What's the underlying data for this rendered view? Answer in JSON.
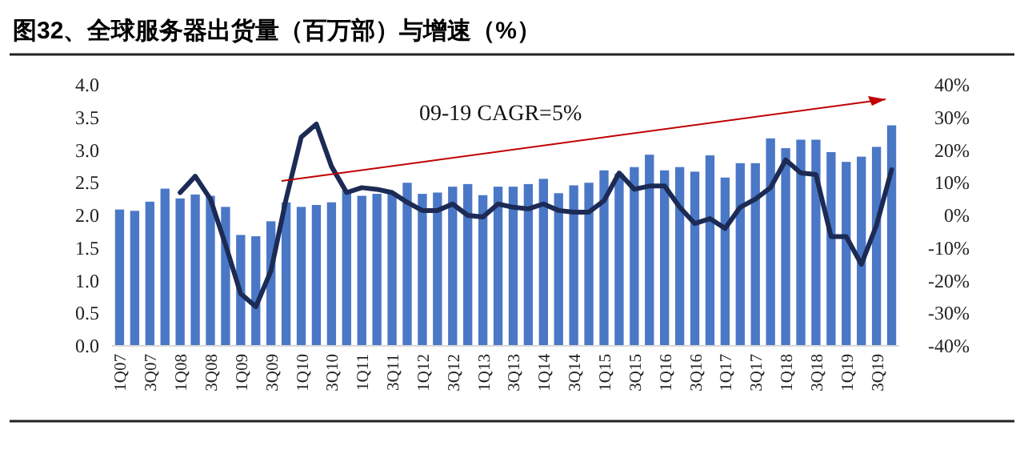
{
  "chart_data": {
    "type": "bar",
    "title": "图32、全球服务器出货量（百万部）与增速（%）",
    "categories": [
      "1Q07",
      null,
      "3Q07",
      null,
      "1Q08",
      null,
      "3Q08",
      null,
      "1Q09",
      null,
      "3Q09",
      null,
      "1Q10",
      null,
      "3Q10",
      null,
      "1Q11",
      null,
      "3Q11",
      null,
      "1Q12",
      null,
      "3Q12",
      null,
      "1Q13",
      null,
      "3Q13",
      null,
      "1Q14",
      null,
      "3Q14",
      null,
      "1Q15",
      null,
      "3Q15",
      null,
      "1Q16",
      null,
      "3Q16",
      null,
      "1Q17",
      null,
      "3Q17",
      null,
      "1Q18",
      null,
      "3Q18",
      null,
      "1Q19",
      null,
      "3Q19",
      null
    ],
    "series": [
      {
        "color": "#4a78c6",
        "values": [
          2.09,
          2.07,
          2.21,
          2.41,
          2.26,
          2.32,
          2.3,
          2.13,
          1.7,
          1.68,
          1.91,
          2.2,
          2.13,
          2.16,
          2.2,
          2.38,
          2.3,
          2.33,
          2.35,
          2.5,
          2.33,
          2.35,
          2.44,
          2.48,
          2.31,
          2.44,
          2.44,
          2.48,
          2.56,
          2.34,
          2.46,
          2.5,
          2.69,
          2.64,
          2.74,
          2.93,
          2.69,
          2.74,
          2.67,
          2.92,
          2.58,
          2.8,
          2.8,
          3.18,
          3.03,
          3.16,
          3.16,
          2.97,
          2.82,
          2.9,
          3.05,
          3.38
        ]
      },
      {
        "type": "line",
        "axis": "y2",
        "color": "#1c2b55",
        "values": [
          null,
          null,
          null,
          null,
          7,
          12,
          5,
          -9,
          -24,
          -28,
          -17,
          5,
          24,
          28,
          15,
          7,
          8.5,
          8,
          7,
          4,
          1.5,
          1.5,
          3.5,
          0,
          -0.5,
          3.5,
          2.5,
          2,
          3.5,
          1.5,
          1,
          1,
          4.5,
          13,
          8,
          9,
          9,
          2.5,
          -2.5,
          -1,
          -4,
          2.5,
          5,
          8.5,
          17,
          13,
          12.5,
          -6.5,
          -6.5,
          -15,
          -3,
          14
        ]
      }
    ],
    "ylim": [
      0,
      4
    ],
    "yticks": [
      {
        "value": 0,
        "label": "0.0"
      },
      {
        "value": 0.5,
        "label": "0.5"
      },
      {
        "value": 1,
        "label": "1.0"
      },
      {
        "value": 1.5,
        "label": "1.5"
      },
      {
        "value": 2,
        "label": "2.0"
      },
      {
        "value": 2.5,
        "label": "2.5"
      },
      {
        "value": 3,
        "label": "3.0"
      },
      {
        "value": 3.5,
        "label": "3.5"
      },
      {
        "value": 4,
        "label": "4.0"
      }
    ],
    "y2lim": [
      -40,
      40
    ],
    "y2ticks": [
      {
        "value": -40,
        "label": "-40%"
      },
      {
        "value": -30,
        "label": "-30%"
      },
      {
        "value": -20,
        "label": "-20%"
      },
      {
        "value": -10,
        "label": "-10%"
      },
      {
        "value": 0,
        "label": "0%"
      },
      {
        "value": 10,
        "label": "10%"
      },
      {
        "value": 20,
        "label": "20%"
      },
      {
        "value": 30,
        "label": "30%"
      },
      {
        "value": 40,
        "label": "40%"
      }
    ],
    "annotations": [
      "09-19 CAGR=5%"
    ]
  }
}
